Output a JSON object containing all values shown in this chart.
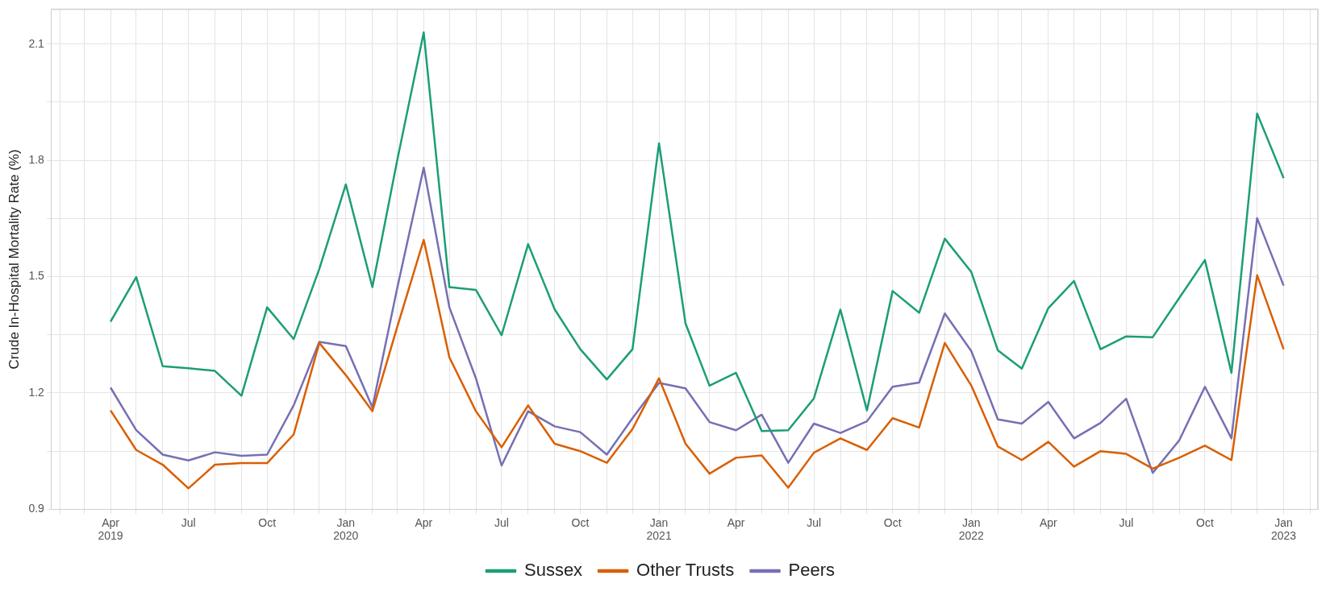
{
  "chart_data": {
    "type": "line",
    "ylabel": "Crude In-Hospital Mortality Rate (%)",
    "x": [
      "2019-04",
      "2019-05",
      "2019-06",
      "2019-07",
      "2019-08",
      "2019-09",
      "2019-10",
      "2019-11",
      "2019-12",
      "2020-01",
      "2020-02",
      "2020-03",
      "2020-04",
      "2020-05",
      "2020-06",
      "2020-07",
      "2020-08",
      "2020-09",
      "2020-10",
      "2020-11",
      "2020-12",
      "2021-01",
      "2021-02",
      "2021-03",
      "2021-04",
      "2021-05",
      "2021-06",
      "2021-07",
      "2021-08",
      "2021-09",
      "2021-10",
      "2021-11",
      "2021-12",
      "2022-01",
      "2022-02",
      "2022-03",
      "2022-04",
      "2022-05",
      "2022-06",
      "2022-07",
      "2022-08",
      "2022-09",
      "2022-10",
      "2022-11",
      "2022-12",
      "2023-01"
    ],
    "series": [
      {
        "name": "Sussex",
        "color": "#1b9e77",
        "values": [
          1.384,
          1.499,
          1.269,
          1.264,
          1.257,
          1.193,
          1.421,
          1.339,
          1.52,
          1.738,
          1.473,
          1.8,
          2.13,
          1.473,
          1.466,
          1.349,
          1.584,
          1.416,
          1.313,
          1.235,
          1.313,
          1.844,
          1.379,
          1.219,
          1.252,
          1.102,
          1.104,
          1.186,
          1.415,
          1.155,
          1.463,
          1.407,
          1.598,
          1.512,
          1.31,
          1.263,
          1.419,
          1.489,
          1.313,
          1.346,
          1.344,
          1.445,
          1.543,
          1.252,
          1.921,
          1.754
        ]
      },
      {
        "name": "Other Trusts",
        "color": "#d95f02",
        "values": [
          1.155,
          1.053,
          1.015,
          0.954,
          1.015,
          1.019,
          1.019,
          1.093,
          1.329,
          1.246,
          1.153,
          1.37,
          1.595,
          1.292,
          1.153,
          1.06,
          1.168,
          1.069,
          1.05,
          1.02,
          1.107,
          1.238,
          1.069,
          0.992,
          1.033,
          1.039,
          0.956,
          1.046,
          1.083,
          1.053,
          1.135,
          1.111,
          1.329,
          1.219,
          1.062,
          1.027,
          1.074,
          1.01,
          1.05,
          1.043,
          1.005,
          1.033,
          1.064,
          1.027,
          1.504,
          1.313
        ]
      },
      {
        "name": "Peers",
        "color": "#7570b3",
        "values": [
          1.214,
          1.104,
          1.041,
          1.026,
          1.047,
          1.038,
          1.041,
          1.168,
          1.332,
          1.321,
          1.163,
          1.47,
          1.781,
          1.421,
          1.238,
          1.013,
          1.153,
          1.114,
          1.099,
          1.041,
          1.135,
          1.226,
          1.212,
          1.125,
          1.104,
          1.144,
          1.02,
          1.121,
          1.097,
          1.127,
          1.216,
          1.227,
          1.405,
          1.308,
          1.132,
          1.121,
          1.177,
          1.083,
          1.123,
          1.185,
          0.994,
          1.078,
          1.216,
          1.083,
          1.651,
          1.477
        ]
      }
    ],
    "xlim": [
      "2019-01-22",
      "2023-02-10"
    ],
    "xticks": [
      {
        "value": "2019-02",
        "label": null
      },
      {
        "value": "2019-03",
        "label": null
      },
      {
        "value": "2019-04",
        "label": "Apr\n2019"
      },
      {
        "value": "2019-05",
        "label": null
      },
      {
        "value": "2019-06",
        "label": null
      },
      {
        "value": "2019-07",
        "label": "Jul"
      },
      {
        "value": "2019-08",
        "label": null
      },
      {
        "value": "2019-09",
        "label": null
      },
      {
        "value": "2019-10",
        "label": "Oct"
      },
      {
        "value": "2019-11",
        "label": null
      },
      {
        "value": "2019-12",
        "label": null
      },
      {
        "value": "2020-01",
        "label": "Jan\n2020"
      },
      {
        "value": "2020-02",
        "label": null
      },
      {
        "value": "2020-03",
        "label": null
      },
      {
        "value": "2020-04",
        "label": "Apr"
      },
      {
        "value": "2020-05",
        "label": null
      },
      {
        "value": "2020-06",
        "label": null
      },
      {
        "value": "2020-07",
        "label": "Jul"
      },
      {
        "value": "2020-08",
        "label": null
      },
      {
        "value": "2020-09",
        "label": null
      },
      {
        "value": "2020-10",
        "label": "Oct"
      },
      {
        "value": "2020-11",
        "label": null
      },
      {
        "value": "2020-12",
        "label": null
      },
      {
        "value": "2021-01",
        "label": "Jan\n2021"
      },
      {
        "value": "2021-02",
        "label": null
      },
      {
        "value": "2021-03",
        "label": null
      },
      {
        "value": "2021-04",
        "label": "Apr"
      },
      {
        "value": "2021-05",
        "label": null
      },
      {
        "value": "2021-06",
        "label": null
      },
      {
        "value": "2021-07",
        "label": "Jul"
      },
      {
        "value": "2021-08",
        "label": null
      },
      {
        "value": "2021-09",
        "label": null
      },
      {
        "value": "2021-10",
        "label": "Oct"
      },
      {
        "value": "2021-11",
        "label": null
      },
      {
        "value": "2021-12",
        "label": null
      },
      {
        "value": "2022-01",
        "label": "Jan\n2022"
      },
      {
        "value": "2022-02",
        "label": null
      },
      {
        "value": "2022-03",
        "label": null
      },
      {
        "value": "2022-04",
        "label": "Apr"
      },
      {
        "value": "2022-05",
        "label": null
      },
      {
        "value": "2022-06",
        "label": null
      },
      {
        "value": "2022-07",
        "label": "Jul"
      },
      {
        "value": "2022-08",
        "label": null
      },
      {
        "value": "2022-09",
        "label": null
      },
      {
        "value": "2022-10",
        "label": "Oct"
      },
      {
        "value": "2022-11",
        "label": null
      },
      {
        "value": "2022-12",
        "label": null
      },
      {
        "value": "2023-01",
        "label": "Jan\n2023"
      },
      {
        "value": "2023-02",
        "label": null
      }
    ],
    "ylim": [
      0.9,
      2.19
    ],
    "yticks": [
      0.9,
      {
        "value": 1.05,
        "label": null
      },
      1.2,
      {
        "value": 1.35,
        "label": null
      },
      1.5,
      {
        "value": 1.65,
        "label": null
      },
      1.8,
      {
        "value": 1.95,
        "label": null
      },
      2.1
    ],
    "grid": true,
    "legend": "bottom",
    "marker": "none",
    "line_style": "solid"
  }
}
